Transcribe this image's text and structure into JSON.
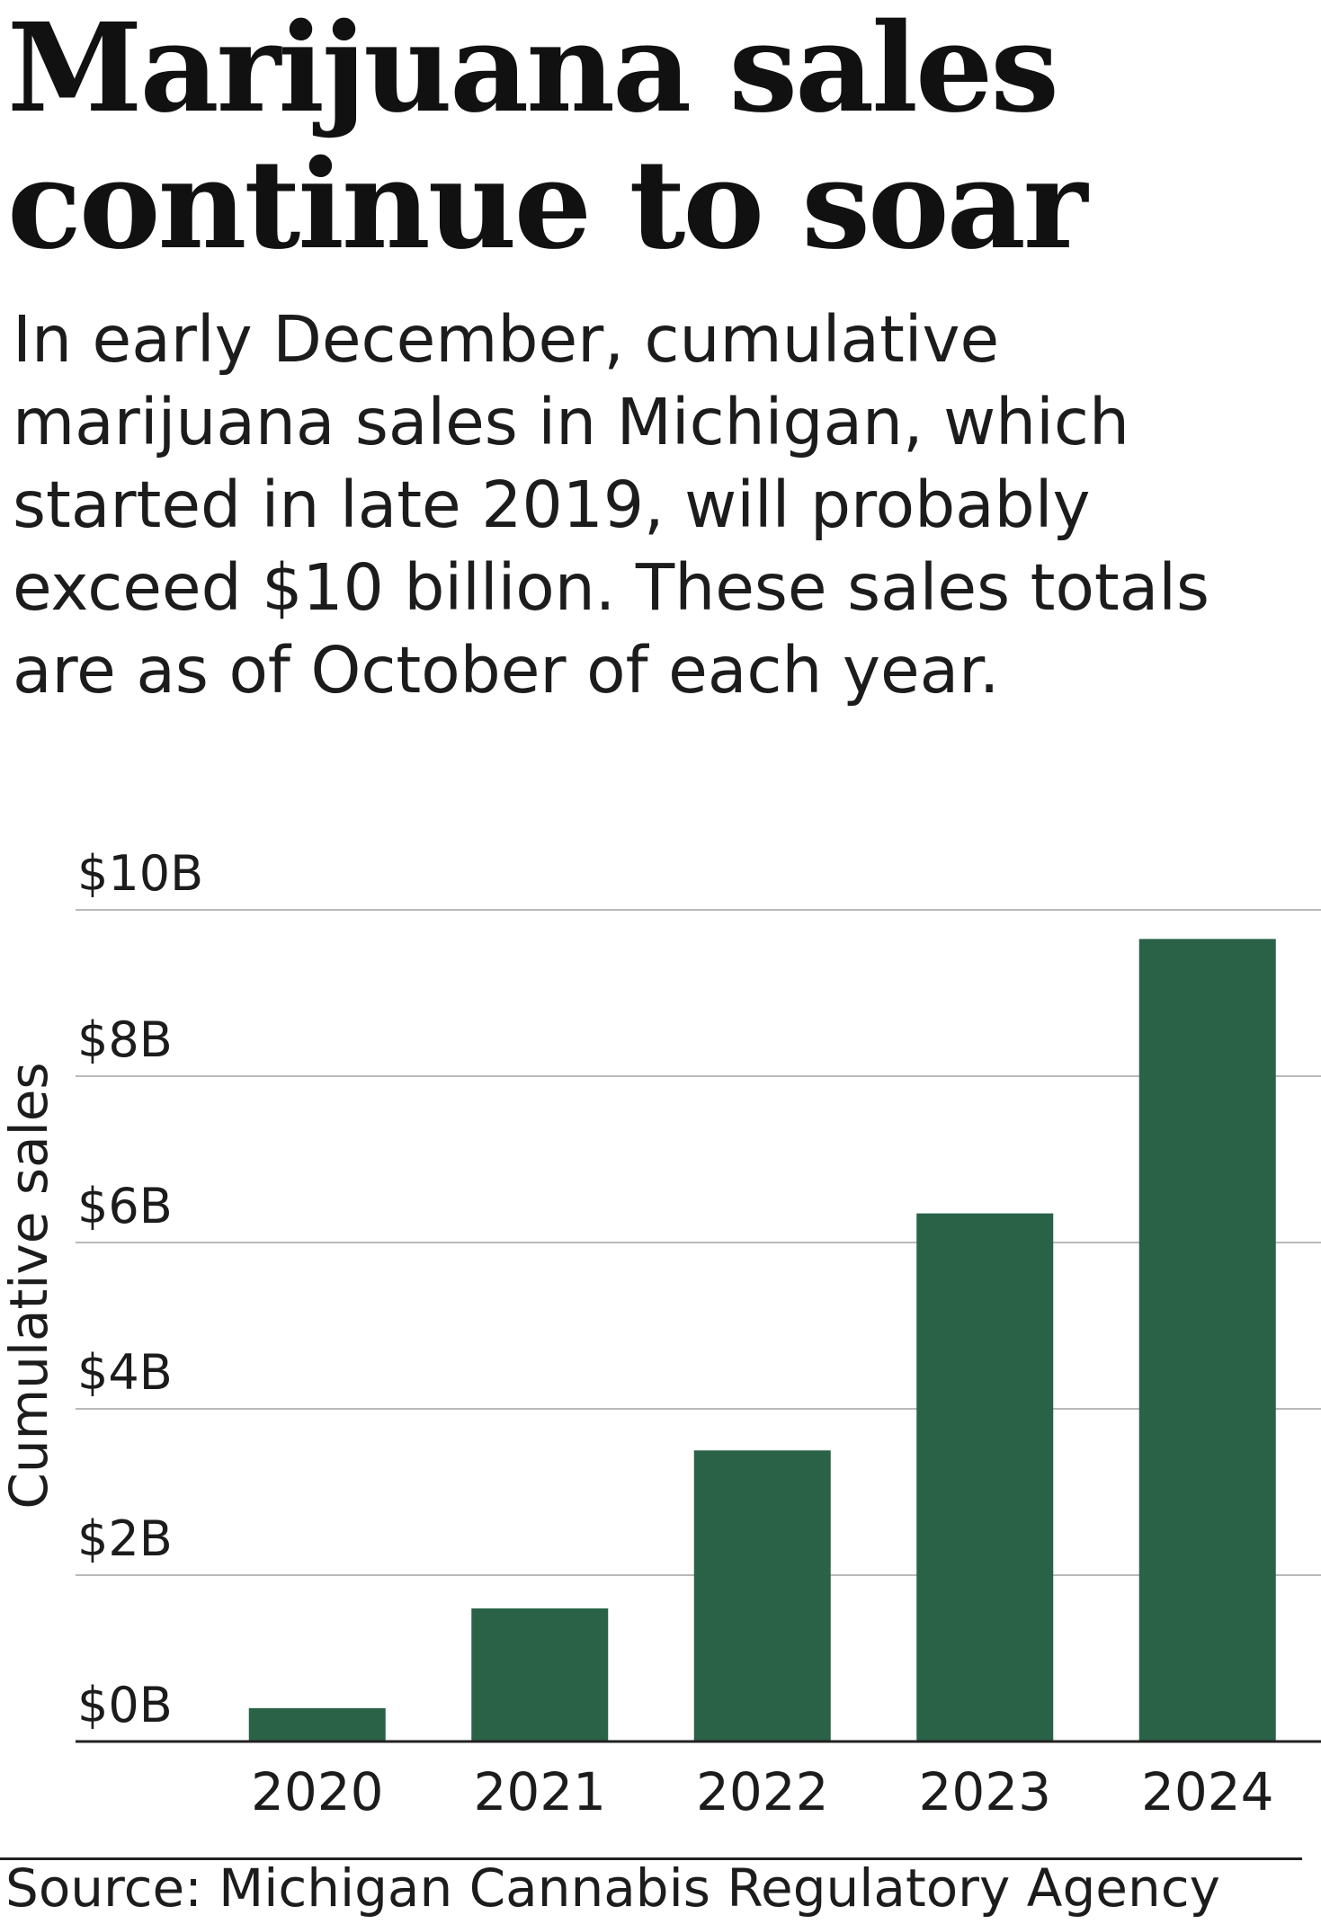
{
  "headline": "Marijuana sales continue to soar",
  "subhead": "In early December, cumulative marijuana sales in Michigan, which started in late 2019, will probably exceed $10 billion. These sales totals are as of October of each year.",
  "source": "Source: Michigan Cannabis Regulatory Agency",
  "colors": {
    "bar": "#2a6248",
    "gridline": "#b9b9b9",
    "axis": "#222222"
  },
  "chart_data": {
    "type": "bar",
    "categories": [
      "2020",
      "2021",
      "2022",
      "2023",
      "2024"
    ],
    "values": [
      0.4,
      1.6,
      3.5,
      6.35,
      9.65
    ],
    "ylabel": "Cumulative sales",
    "ylim": [
      0,
      10
    ],
    "yticks": [
      0,
      2,
      4,
      6,
      8,
      10
    ],
    "ytick_labels": [
      "$0B",
      "$2B",
      "$4B",
      "$6B",
      "$8B",
      "$10B"
    ],
    "grid": true
  }
}
